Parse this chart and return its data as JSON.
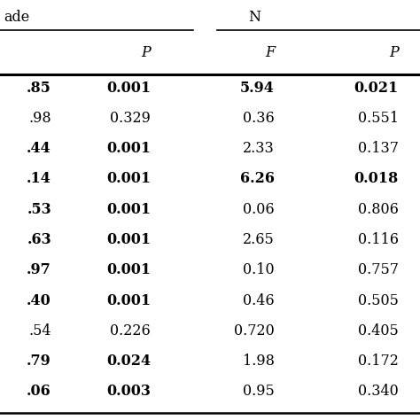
{
  "col1_values": [
    ".85",
    ".98",
    ".44",
    ".14",
    ".53",
    ".63",
    ".97",
    ".40",
    ".54",
    ".79",
    ".06"
  ],
  "col2_values": [
    "0.001",
    "0.329",
    "0.001",
    "0.001",
    "0.001",
    "0.001",
    "0.001",
    "0.001",
    "0.226",
    "0.024",
    "0.003"
  ],
  "col3_values": [
    "5.94",
    "0.36",
    "2.33",
    "6.26",
    "0.06",
    "2.65",
    "0.10",
    "0.46",
    "0.720",
    "1.98",
    "0.95"
  ],
  "col4_values": [
    "0.021",
    "0.551",
    "0.137",
    "0.018",
    "0.806",
    "0.116",
    "0.757",
    "0.505",
    "0.405",
    "0.172",
    "0.340"
  ],
  "col1_bold": [
    true,
    false,
    true,
    true,
    true,
    true,
    true,
    true,
    false,
    true,
    true
  ],
  "col2_bold": [
    true,
    false,
    true,
    true,
    true,
    true,
    true,
    true,
    false,
    true,
    true
  ],
  "col3_bold": [
    true,
    false,
    false,
    true,
    false,
    false,
    false,
    false,
    false,
    false,
    false
  ],
  "col4_bold": [
    true,
    false,
    false,
    true,
    false,
    false,
    false,
    false,
    false,
    false,
    false
  ],
  "header_top1": "ade",
  "header_top2": "N",
  "header_P1": "P",
  "header_F2": "F",
  "header_P2": "P",
  "bg_color": "#ffffff",
  "text_color": "#000000",
  "fontsize": 11.5,
  "header_fontsize": 11.5
}
